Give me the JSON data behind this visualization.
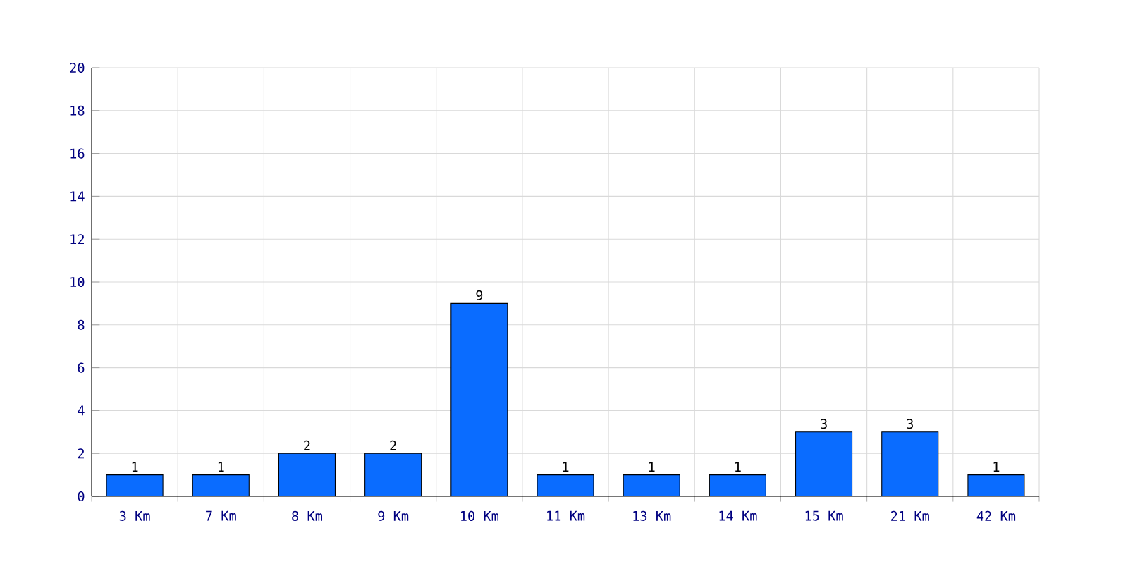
{
  "chart_data": {
    "type": "bar",
    "categories": [
      "3 Km",
      "7 Km",
      "8 Km",
      "9 Km",
      "10 Km",
      "11 Km",
      "13 Km",
      "14 Km",
      "15 Km",
      "21 Km",
      "42 Km"
    ],
    "values": [
      1,
      1,
      2,
      2,
      9,
      1,
      1,
      1,
      3,
      3,
      1
    ],
    "color": "#0a6cff",
    "ylim": [
      0,
      20
    ],
    "yticks": [
      0,
      2,
      4,
      6,
      8,
      10,
      12,
      14,
      16,
      18,
      20
    ],
    "grid": true,
    "data_labels": true
  }
}
